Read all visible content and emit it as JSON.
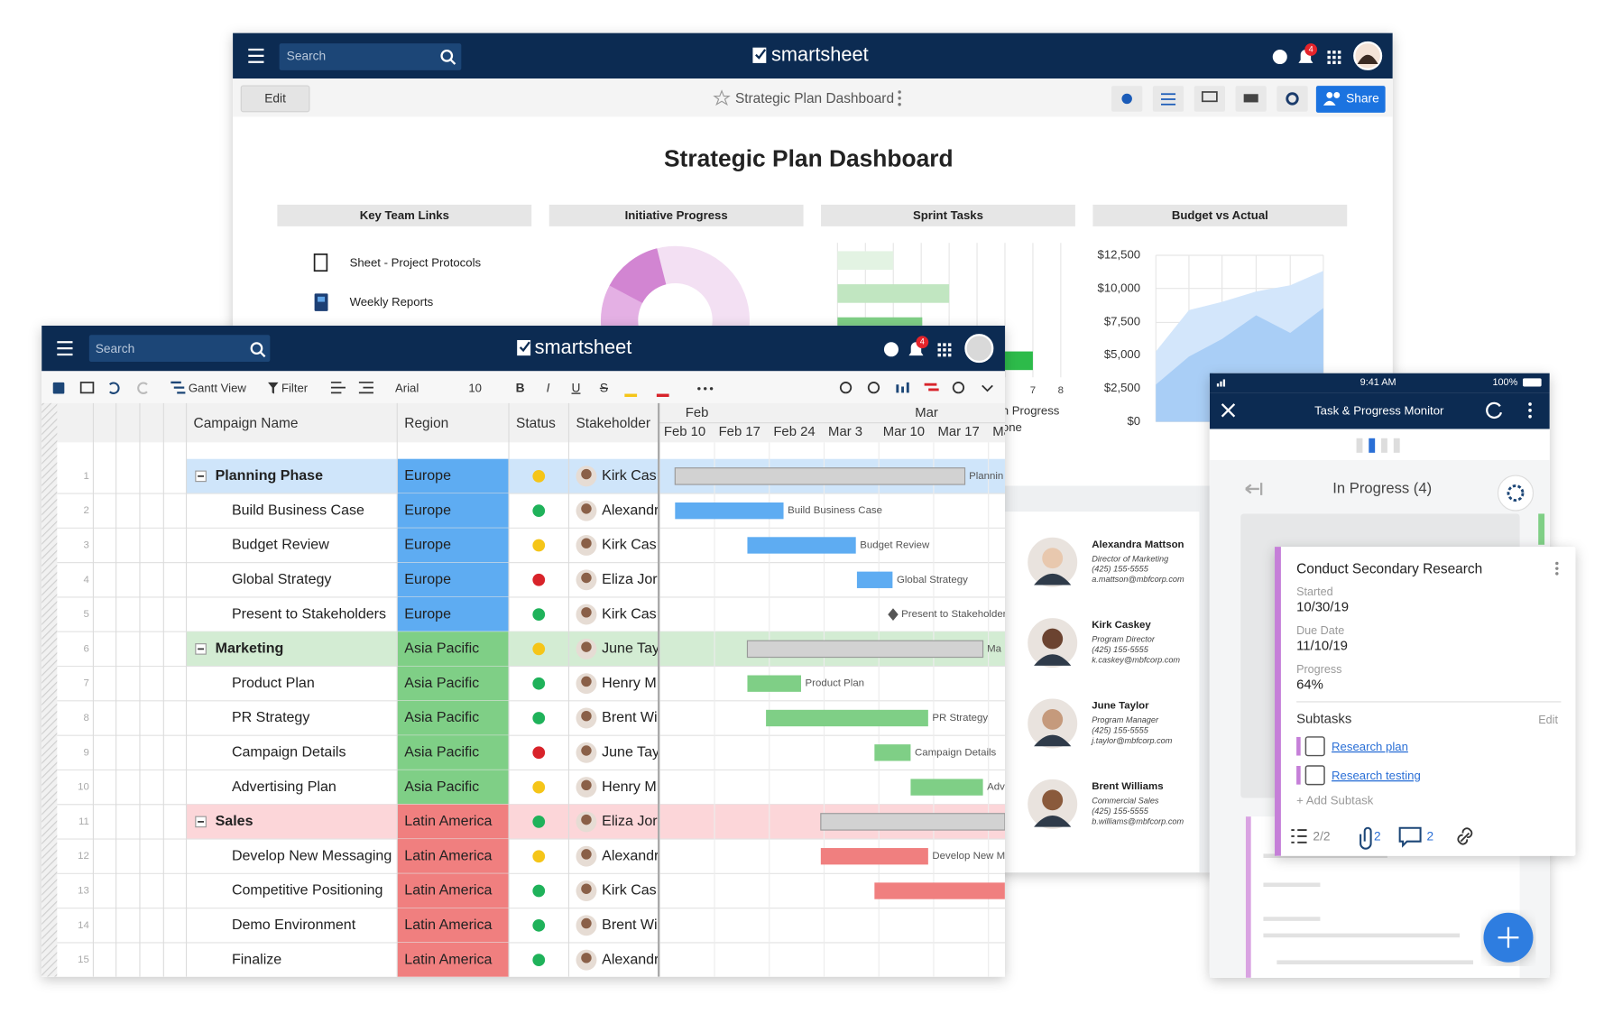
{
  "back_window": {
    "search_placeholder": "Search",
    "logo": "smartsheet",
    "notification_count": "4",
    "edit_button": "Edit",
    "sheet_name": "Strategic Plan Dashboard",
    "share_button": "Share",
    "heading": "Strategic Plan Dashboard",
    "widget_titles": [
      "Key Team Links",
      "Initiative Progress",
      "Sprint Tasks",
      "Budget vs Actual"
    ],
    "links": [
      "Sheet - Project Protocols",
      "Weekly Reports"
    ],
    "sprint_axis_labels": [
      "7",
      "8"
    ],
    "sprint_legend": [
      "In Progress",
      "Done"
    ],
    "budget_ticks": [
      "$12,500",
      "$10,000",
      "$7,500",
      "$5,000",
      "$2,500",
      "$0"
    ],
    "contacts": [
      {
        "name": "Alexandra Mattson",
        "title": "Director of Marketing",
        "phone": "(425) 155-5555",
        "email": "a.mattson@mbfcorp.com"
      },
      {
        "name": "Kirk Caskey",
        "title": "Program Director",
        "phone": "(425) 155-5555",
        "email": "k.caskey@mbfcorp.com"
      },
      {
        "name": "June Taylor",
        "title": "Program Manager",
        "phone": "(425) 155-5555",
        "email": "j.taylor@mbfcorp.com"
      },
      {
        "name": "Brent Williams",
        "title": "Commercial Sales",
        "phone": "(425) 155-5555",
        "email": "b.williams@mbfcorp.com"
      }
    ]
  },
  "sheet_window": {
    "search_placeholder": "Search",
    "logo": "smartsheet",
    "notification_count": "4",
    "toolbar": {
      "view": "Gantt View",
      "filter": "Filter",
      "font": "Arial",
      "font_size": "10"
    },
    "columns": [
      "Campaign Name",
      "Region",
      "Status",
      "Stakeholder"
    ],
    "months": [
      "Feb",
      "Mar"
    ],
    "weeks": [
      "Feb 10",
      "Feb 17",
      "Feb 24",
      "Mar 3",
      "Mar 10",
      "Mar 17",
      "Ma"
    ],
    "rows": [
      {
        "number": "1",
        "name": "Planning Phase",
        "parent": true,
        "row_color": "#cfe5fa",
        "color": "#5eacf2",
        "region": "Europe",
        "status_color": "#f5c518",
        "stakeholder": "Kirk Cas",
        "start": 0.28,
        "end": 5.57,
        "label": "Plannin"
      },
      {
        "number": "2",
        "name": "Build Business Case",
        "color": "#5eacf2",
        "region": "Europe",
        "status_color": "#1fb25a",
        "stakeholder": "Alexandr",
        "start": 0.28,
        "end": 2.26,
        "label": "Build Business Case"
      },
      {
        "number": "3",
        "name": "Budget Review",
        "color": "#5eacf2",
        "region": "Europe",
        "status_color": "#f5c518",
        "stakeholder": "Kirk Cas",
        "start": 1.6,
        "end": 3.58,
        "label": "Budget Review"
      },
      {
        "number": "4",
        "name": "Global Strategy",
        "color": "#5eacf2",
        "region": "Europe",
        "status_color": "#d8232a",
        "stakeholder": "Eliza Jor",
        "start": 3.6,
        "end": 4.25,
        "label": "Global Strategy"
      },
      {
        "number": "5",
        "name": "Present to Stakeholders",
        "color": "#5eacf2",
        "region": "Europe",
        "status_color": "#1fb25a",
        "stakeholder": "Kirk Cas",
        "milestone": 4.26,
        "label": "Present to Stakeholder"
      },
      {
        "number": "6",
        "name": "Marketing",
        "parent": true,
        "row_color": "#d3ecd3",
        "color": "#7fcf86",
        "region": "Asia Pacific",
        "status_color": "#f5c518",
        "stakeholder": "June Tay",
        "start": 1.6,
        "end": 5.9,
        "label": "Ma"
      },
      {
        "number": "7",
        "name": "Product Plan",
        "color": "#7fcf86",
        "region": "Asia Pacific",
        "status_color": "#1fb25a",
        "stakeholder": "Henry M",
        "start": 1.6,
        "end": 2.58,
        "label": "Product Plan"
      },
      {
        "number": "8",
        "name": "PR Strategy",
        "color": "#7fcf86",
        "region": "Asia Pacific",
        "status_color": "#1fb25a",
        "stakeholder": "Brent Wi",
        "start": 1.94,
        "end": 4.9,
        "label": "PR Strategy"
      },
      {
        "number": "9",
        "name": "Campaign Details",
        "color": "#7fcf86",
        "region": "Asia Pacific",
        "status_color": "#d8232a",
        "stakeholder": "June Tay",
        "start": 3.92,
        "end": 4.58,
        "label": "Campaign Details"
      },
      {
        "number": "10",
        "name": "Advertising Plan",
        "color": "#7fcf86",
        "region": "Asia Pacific",
        "status_color": "#f5c518",
        "stakeholder": "Henry M",
        "start": 4.58,
        "end": 5.9,
        "label": "Adv"
      },
      {
        "number": "11",
        "name": "Sales",
        "parent": true,
        "row_color": "#fcd6d9",
        "color": "#f07f7f",
        "region": "Latin America",
        "status_color": "#1fb25a",
        "stakeholder": "Eliza Jor",
        "start": 2.94,
        "end": 6.3
      },
      {
        "number": "12",
        "name": "Develop New Messaging",
        "color": "#f07f7f",
        "region": "Latin America",
        "status_color": "#f5c518",
        "stakeholder": "Alexandr",
        "start": 2.94,
        "end": 4.9,
        "label": "Develop New M"
      },
      {
        "number": "13",
        "name": "Competitive Positioning",
        "color": "#f07f7f",
        "region": "Latin America",
        "status_color": "#1fb25a",
        "stakeholder": "Kirk Cas",
        "start": 3.92,
        "end": 6.3
      },
      {
        "number": "14",
        "name": "Demo Environment",
        "color": "#f07f7f",
        "region": "Latin America",
        "status_color": "#1fb25a",
        "stakeholder": "Brent Wi"
      },
      {
        "number": "15",
        "name": "Finalize",
        "color": "#f07f7f",
        "region": "Latin America",
        "status_color": "#1fb25a",
        "stakeholder": "Alexandr"
      }
    ]
  },
  "mobile": {
    "time": "9:41 AM",
    "battery": "100%",
    "title": "Task & Progress Monitor",
    "column_title": "In Progress (4)",
    "card": {
      "title": "Conduct Secondary Research",
      "fields": [
        {
          "label": "Started",
          "value": "10/30/19"
        },
        {
          "label": "Due Date",
          "value": "11/10/19"
        },
        {
          "label": "Progress",
          "value": "64%"
        }
      ],
      "subtasks_label": "Subtasks",
      "edit": "Edit",
      "subtasks": [
        "Research plan",
        "Research testing"
      ],
      "add_subtask": "+ Add Subtask",
      "subtask_count": "2/2",
      "attachment_count": "2",
      "comment_count": "2"
    }
  }
}
